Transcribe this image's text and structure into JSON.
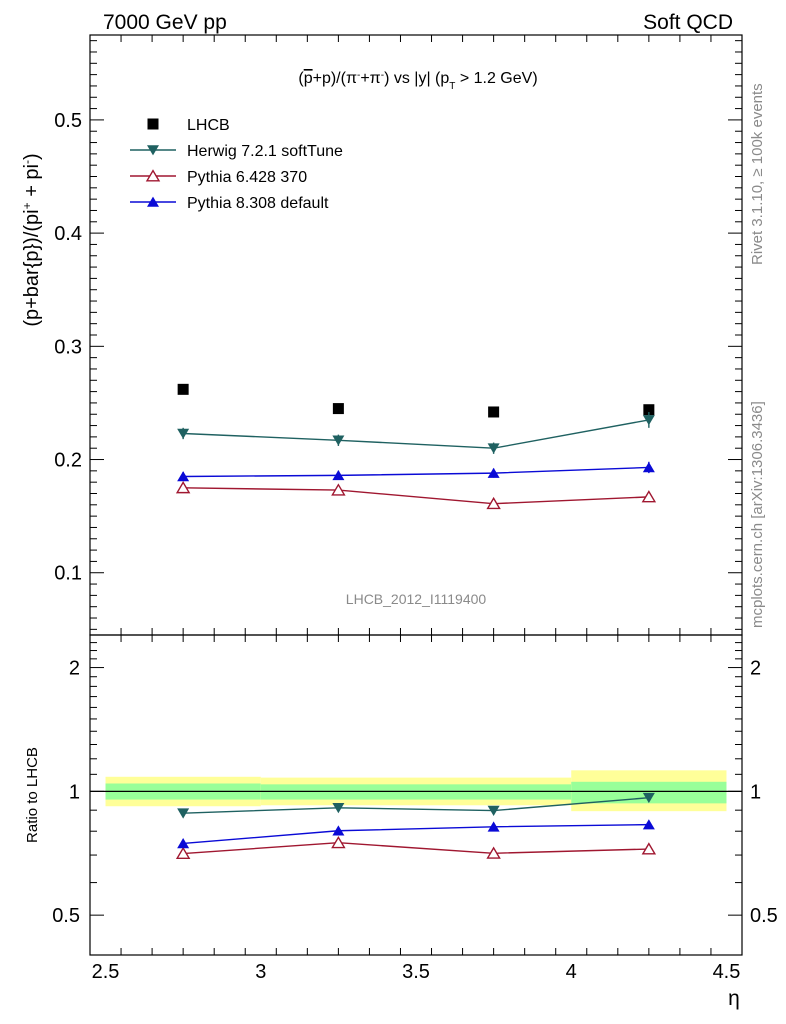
{
  "header": {
    "left": "7000 GeV pp",
    "right": "Soft QCD"
  },
  "side_text": {
    "rivet": "Rivet 3.1.10, ≥ 100k events",
    "mcplots": "mcplots.cern.ch [arXiv:1306.3436]"
  },
  "watermark": "LHCB_2012_I1119400",
  "colors": {
    "lhcb": "#000000",
    "herwig": "#1f6161",
    "pythia6": "#a01730",
    "pythia8": "#0a0ad6",
    "band_inner": "#99ff99",
    "band_outer": "#ffff99"
  },
  "chart_data": [
    {
      "type": "scatter",
      "panel": "main",
      "title_parts": {
        "open": "(",
        "pbar": "p",
        "pre_pi": "+p)/(π",
        "pi_minus_sup": "-",
        "mid": "+π",
        "pi_plus_sup": "-",
        "post_pi": ") vs |y| (p",
        "pt_sub": "T",
        "tail": " > 1.2 GeV)"
      },
      "ylabel": "(p+bar{p})/(pi⁺ + pi⁻)",
      "ylabel_parts": {
        "base": "(p+bar{p})/(pi",
        "sup1": "+",
        "mid": " + pi",
        "sup2": "-",
        "close": ")"
      },
      "ylim": [
        0.045,
        0.575
      ],
      "yticks": [
        "0.1",
        "0.2",
        "0.3",
        "0.4",
        "0.5"
      ],
      "ytick_values": [
        0.1,
        0.2,
        0.3,
        0.4,
        0.5
      ],
      "x": [
        2.75,
        3.25,
        3.75,
        4.25
      ],
      "xlim": [
        2.45,
        4.55
      ],
      "legend_position": "top-left",
      "series": [
        {
          "name": "LHCB",
          "key": "lhcb",
          "marker": "square",
          "values": [
            0.262,
            0.245,
            0.242,
            0.244
          ],
          "line": false
        },
        {
          "name": "Herwig 7.2.1 softTune",
          "key": "herwig",
          "marker": "triangle-down",
          "values": [
            0.223,
            0.217,
            0.21,
            0.235
          ],
          "errors": [
            0.005,
            0.005,
            0.005,
            0.007
          ],
          "line": true
        },
        {
          "name": "Pythia 6.428 370",
          "key": "pythia6",
          "marker": "triangle-up-open",
          "values": [
            0.175,
            0.173,
            0.161,
            0.167
          ],
          "errors": [
            0.003,
            0.003,
            0.003,
            0.004
          ],
          "line": true
        },
        {
          "name": "Pythia 8.308 default",
          "key": "pythia8",
          "marker": "triangle-up",
          "values": [
            0.185,
            0.186,
            0.188,
            0.193
          ],
          "errors": [
            0.004,
            0.004,
            0.004,
            0.005
          ],
          "line": true
        }
      ]
    },
    {
      "type": "scatter",
      "panel": "ratio",
      "ylabel": "Ratio to LHCB",
      "ylim": [
        0.4,
        2.4
      ],
      "yscale": "log",
      "yticks": [
        "0.5",
        "1",
        "2"
      ],
      "ytick_values": [
        0.5,
        1,
        2
      ],
      "xlabel": "η",
      "xlim": [
        2.45,
        4.55
      ],
      "xticks": [
        "2.5",
        "3",
        "3.5",
        "4",
        "4.5"
      ],
      "xtick_values": [
        2.5,
        3.0,
        3.5,
        4.0,
        4.5
      ],
      "bands": [
        {
          "x": [
            2.5,
            3.0
          ],
          "inner": [
            0.955,
            1.045
          ],
          "outer": [
            0.92,
            1.085
          ]
        },
        {
          "x": [
            3.0,
            3.5
          ],
          "inner": [
            0.955,
            1.04
          ],
          "outer": [
            0.925,
            1.08
          ]
        },
        {
          "x": [
            3.5,
            4.0
          ],
          "inner": [
            0.955,
            1.04
          ],
          "outer": [
            0.925,
            1.08
          ]
        },
        {
          "x": [
            4.0,
            4.5
          ],
          "inner": [
            0.935,
            1.055
          ],
          "outer": [
            0.895,
            1.125
          ]
        }
      ],
      "x": [
        2.75,
        3.25,
        3.75,
        4.25
      ],
      "series": [
        {
          "name": "Herwig 7.2.1 softTune",
          "key": "herwig",
          "marker": "triangle-down",
          "values": [
            0.885,
            0.912,
            0.898,
            0.965
          ]
        },
        {
          "name": "Pythia 6.428 370",
          "key": "pythia6",
          "marker": "triangle-up-open",
          "values": [
            0.706,
            0.75,
            0.707,
            0.724
          ]
        },
        {
          "name": "Pythia 8.308 default",
          "key": "pythia8",
          "marker": "triangle-up",
          "values": [
            0.747,
            0.802,
            0.82,
            0.83
          ]
        }
      ]
    }
  ]
}
